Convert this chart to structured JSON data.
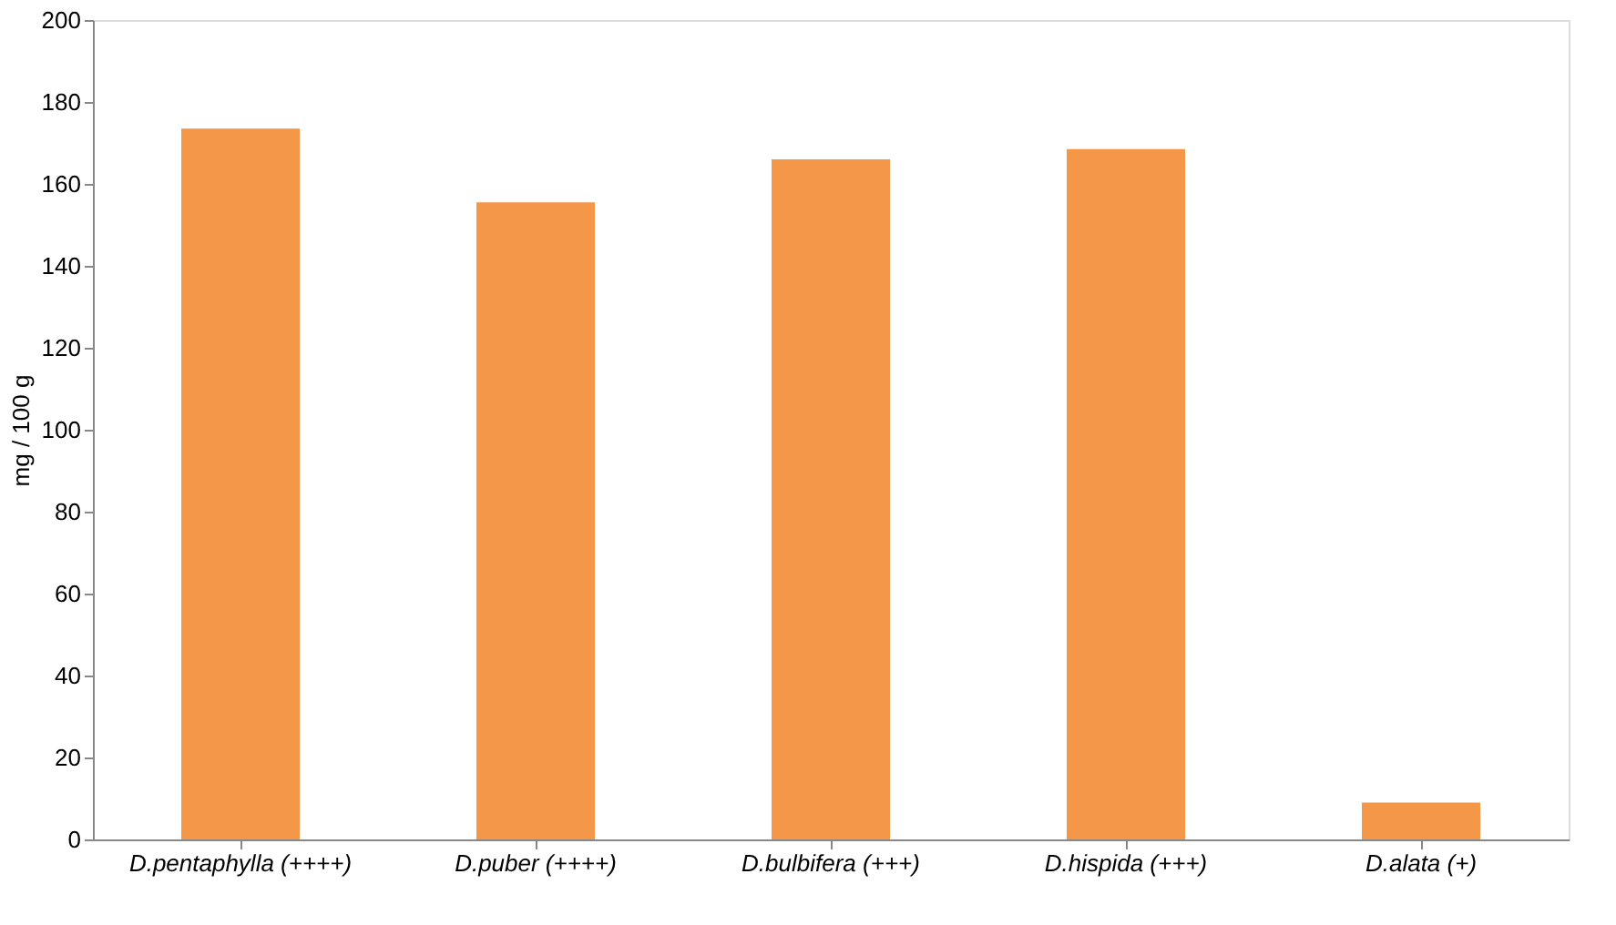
{
  "chart_data": {
    "type": "bar",
    "ylabel": "mg / 100 g",
    "categories": [
      "D.pentaphylla (++++)",
      "D.puber (++++)",
      "D.bulbifera (+++)",
      "D.hispida (+++)",
      "D.alata (+)"
    ],
    "values": [
      173.5,
      155.5,
      166,
      168.5,
      9
    ],
    "color": "#f59748",
    "ylim": [
      0,
      200
    ],
    "yticks": [
      0,
      20,
      40,
      60,
      80,
      100,
      120,
      140,
      160,
      180,
      200
    ],
    "grid": false
  }
}
